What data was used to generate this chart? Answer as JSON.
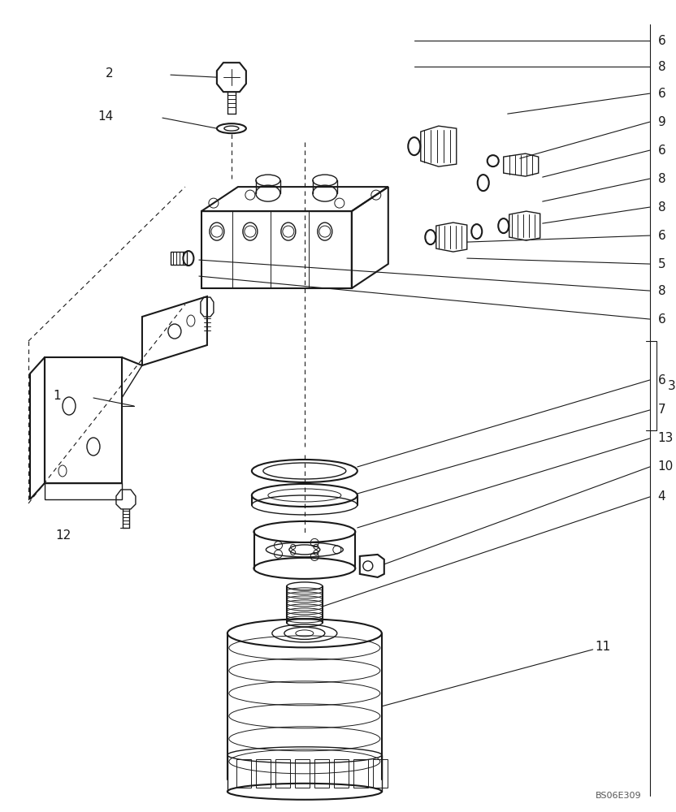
{
  "background_color": "#ffffff",
  "figure_width": 8.32,
  "figure_height": 10.0,
  "dpi": 100,
  "watermark": "BS06E309",
  "line_color": "#1a1a1a",
  "label_fontsize": 11
}
